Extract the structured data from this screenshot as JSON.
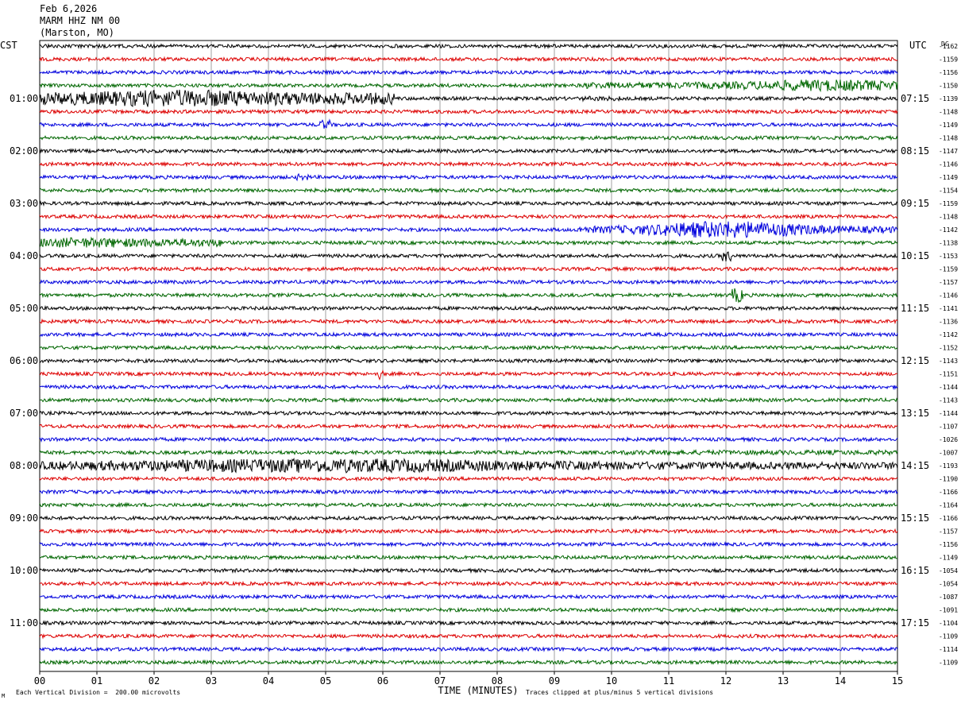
{
  "header": {
    "date": "Feb 6,2026",
    "station": "MARM HHZ NM 00",
    "location": "(Marston, MO)"
  },
  "left_timezone": "CST",
  "right_timezone": "UTC",
  "dc_header": "DC",
  "footer": {
    "scale_note": "Each Vertical Division =  200.00 microvolts",
    "clip_note": "Traces clipped at plus/minus 5 vertical divisions",
    "corner_mark": "M"
  },
  "chart_data": {
    "type": "helicorder",
    "xlabel": "TIME (MINUTES)",
    "x_ticks": [
      "00",
      "01",
      "02",
      "03",
      "04",
      "05",
      "06",
      "07",
      "08",
      "09",
      "10",
      "11",
      "12",
      "13",
      "14",
      "15"
    ],
    "xlim": [
      0,
      15
    ],
    "minutes_per_line": 15,
    "color_cycle": [
      "#000000",
      "#dd0000",
      "#0000dd",
      "#006600"
    ],
    "left_hour_labels": [
      {
        "line": 4,
        "text": "01:00"
      },
      {
        "line": 8,
        "text": "02:00"
      },
      {
        "line": 12,
        "text": "03:00"
      },
      {
        "line": 16,
        "text": "04:00"
      },
      {
        "line": 20,
        "text": "05:00"
      },
      {
        "line": 24,
        "text": "06:00"
      },
      {
        "line": 28,
        "text": "07:00"
      },
      {
        "line": 32,
        "text": "08:00"
      },
      {
        "line": 36,
        "text": "09:00"
      },
      {
        "line": 40,
        "text": "10:00"
      },
      {
        "line": 44,
        "text": "11:00"
      }
    ],
    "right_hour_labels": [
      {
        "line": 4,
        "text": "07:15"
      },
      {
        "line": 8,
        "text": "08:15"
      },
      {
        "line": 12,
        "text": "09:15"
      },
      {
        "line": 16,
        "text": "10:15"
      },
      {
        "line": 20,
        "text": "11:15"
      },
      {
        "line": 24,
        "text": "12:15"
      },
      {
        "line": 28,
        "text": "13:15"
      },
      {
        "line": 32,
        "text": "14:15"
      },
      {
        "line": 36,
        "text": "15:15"
      },
      {
        "line": 40,
        "text": "16:15"
      },
      {
        "line": 44,
        "text": "17:15"
      }
    ],
    "dc_offsets": [
      "-1162",
      "-1159",
      "-1156",
      "-1150",
      "-1139",
      "-1148",
      "-1149",
      "-1148",
      "-1147",
      "-1146",
      "-1149",
      "-1154",
      "-1159",
      "-1148",
      "-1142",
      "-1138",
      "-1153",
      "-1159",
      "-1157",
      "-1146",
      "-1141",
      "-1136",
      "-1142",
      "-1152",
      "-1143",
      "-1151",
      "-1144",
      "-1143",
      "-1144",
      "-1107",
      "-1026",
      "-1007",
      "-1193",
      "-1190",
      "-1166",
      "-1164",
      "-1166",
      "-1157",
      "-1156",
      "-1149",
      "-1054",
      "-1054",
      "-1087",
      "-1091",
      "-1104",
      "-1109",
      "-1114",
      "-1109"
    ],
    "base_noise": 2.2,
    "traces_with_events": [
      {
        "line": 3,
        "bursts": [
          {
            "start_min": 5.0,
            "end_min": 6.5,
            "amp": 1.8
          },
          {
            "start_min": 9.5,
            "end_min": 15.0,
            "amp": 4.0,
            "peak_min": 13.8,
            "peak_amp": 7.5
          }
        ]
      },
      {
        "line": 4,
        "bursts": [
          {
            "start_min": 0.0,
            "end_min": 6.2,
            "amp": 7.5,
            "peak_min": 2.5,
            "peak_amp": 11.0
          },
          {
            "start_min": 9.5,
            "end_min": 10.2,
            "amp": 3.0
          }
        ]
      },
      {
        "line": 6,
        "bursts": [
          {
            "start_min": 4.9,
            "end_min": 5.1,
            "amp": 6.0
          }
        ]
      },
      {
        "line": 10,
        "bursts": [
          {
            "start_min": 4.5,
            "end_min": 4.7,
            "amp": 4.0
          }
        ]
      },
      {
        "line": 14,
        "bursts": [
          {
            "start_min": 9.4,
            "end_min": 15.0,
            "amp": 4.0,
            "peak_min": 12.0,
            "peak_amp": 11.0
          }
        ]
      },
      {
        "line": 15,
        "bursts": [
          {
            "start_min": 0.0,
            "end_min": 3.2,
            "amp": 5.0,
            "peak_min": 0.8,
            "peak_amp": 6.5
          }
        ]
      },
      {
        "line": 16,
        "bursts": [
          {
            "start_min": 11.9,
            "end_min": 12.1,
            "amp": 7.0
          }
        ]
      },
      {
        "line": 19,
        "bursts": [
          {
            "start_min": 12.1,
            "end_min": 12.3,
            "amp": 9.0
          }
        ]
      },
      {
        "line": 25,
        "bursts": [
          {
            "start_min": 5.9,
            "end_min": 6.0,
            "amp": 7.0
          }
        ]
      },
      {
        "line": 31,
        "bursts": [
          {
            "start_min": 10.2,
            "end_min": 15.0,
            "amp": 3.0
          }
        ]
      },
      {
        "line": 32,
        "bursts": [
          {
            "start_min": 0.0,
            "end_min": 15.0,
            "amp": 4.5,
            "peak_min": 5.0,
            "peak_amp": 9.0
          }
        ]
      }
    ]
  }
}
